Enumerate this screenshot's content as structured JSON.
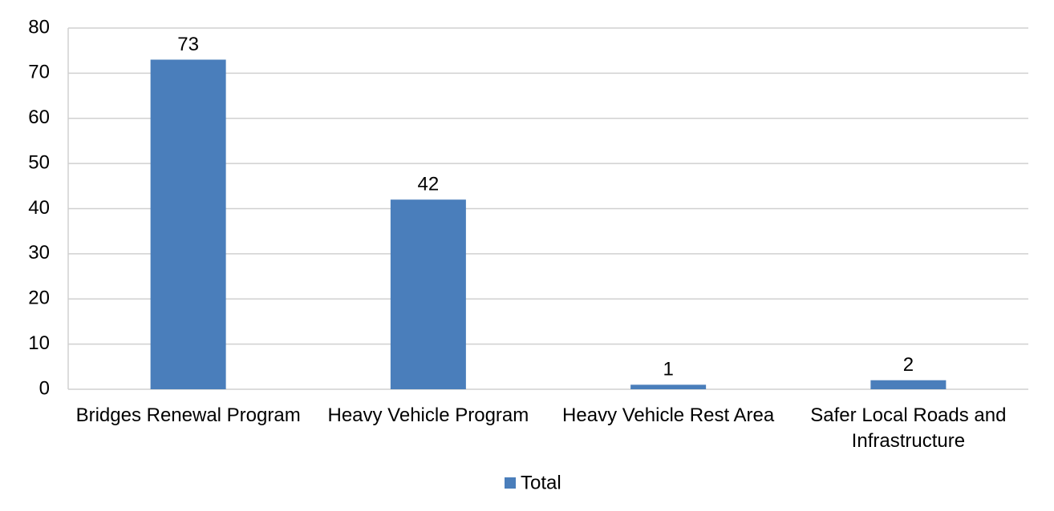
{
  "chart_data": {
    "type": "bar",
    "categories": [
      "Bridges Renewal Program",
      "Heavy Vehicle Program",
      "Heavy Vehicle Rest Area",
      "Safer Local Roads and Infrastructure"
    ],
    "series": [
      {
        "name": "Total",
        "color": "#4a7ebb",
        "values": [
          73,
          42,
          1,
          2
        ]
      }
    ],
    "ylim": [
      0,
      80
    ],
    "yticks": [
      0,
      10,
      20,
      30,
      40,
      50,
      60,
      70,
      80
    ],
    "grid": true,
    "legend": "bottom"
  }
}
